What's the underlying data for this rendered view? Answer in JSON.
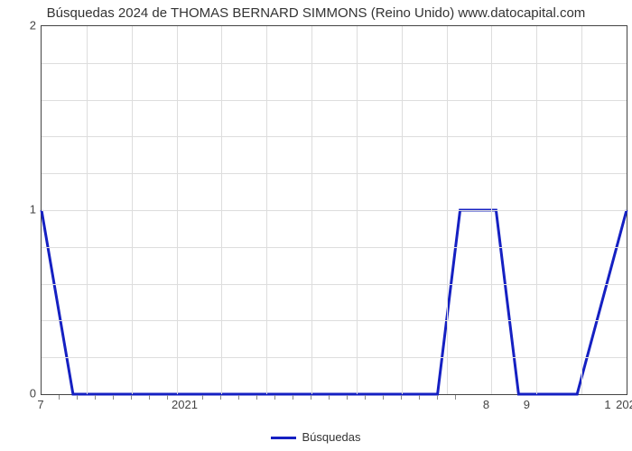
{
  "chart": {
    "type": "line",
    "title": "Búsquedas 2024 de THOMAS BERNARD SIMMONS (Reino Unido) www.datocapital.com",
    "title_fontsize": 15,
    "title_color": "#333333",
    "background_color": "#ffffff",
    "plot_border_color": "#444444",
    "grid_color": "#dddddd",
    "line_color": "#1520c2",
    "line_width": 3,
    "ylim": [
      0,
      2
    ],
    "y_major_ticks": [
      0,
      1,
      2
    ],
    "y_minor_gridlines_per_major": 4,
    "x_range_index": [
      0,
      13
    ],
    "x_label_ticks": [
      {
        "idx": 0,
        "label": "7"
      },
      {
        "idx": 3.2,
        "label": "2021"
      },
      {
        "idx": 9.9,
        "label": "8"
      },
      {
        "idx": 10.8,
        "label": "9"
      },
      {
        "idx": 12.6,
        "label": "1"
      },
      {
        "idx": 13,
        "label": "202"
      }
    ],
    "x_minor_ticks_idx": [
      0.4,
      0.8,
      1.2,
      1.6,
      2.0,
      2.4,
      2.8,
      3.6,
      4.0,
      4.4,
      4.8,
      5.2,
      5.6,
      6.0,
      6.4,
      6.8,
      7.2,
      7.6,
      8.0,
      8.4,
      8.8,
      9.2
    ],
    "x_vertical_gridlines_idx": [
      1,
      2,
      3,
      4,
      5,
      6,
      7,
      8,
      9,
      10,
      11,
      12
    ],
    "series": {
      "label": "Búsquedas",
      "points": [
        {
          "x": 0.0,
          "y": 1.0
        },
        {
          "x": 0.7,
          "y": 0.0
        },
        {
          "x": 8.8,
          "y": 0.0
        },
        {
          "x": 9.3,
          "y": 1.0
        },
        {
          "x": 10.1,
          "y": 1.0
        },
        {
          "x": 10.6,
          "y": 0.0
        },
        {
          "x": 11.9,
          "y": 0.0
        },
        {
          "x": 13.0,
          "y": 1.0
        }
      ]
    },
    "legend_position": "bottom-center",
    "tick_font_color": "#444444",
    "tick_font_size": 13
  }
}
